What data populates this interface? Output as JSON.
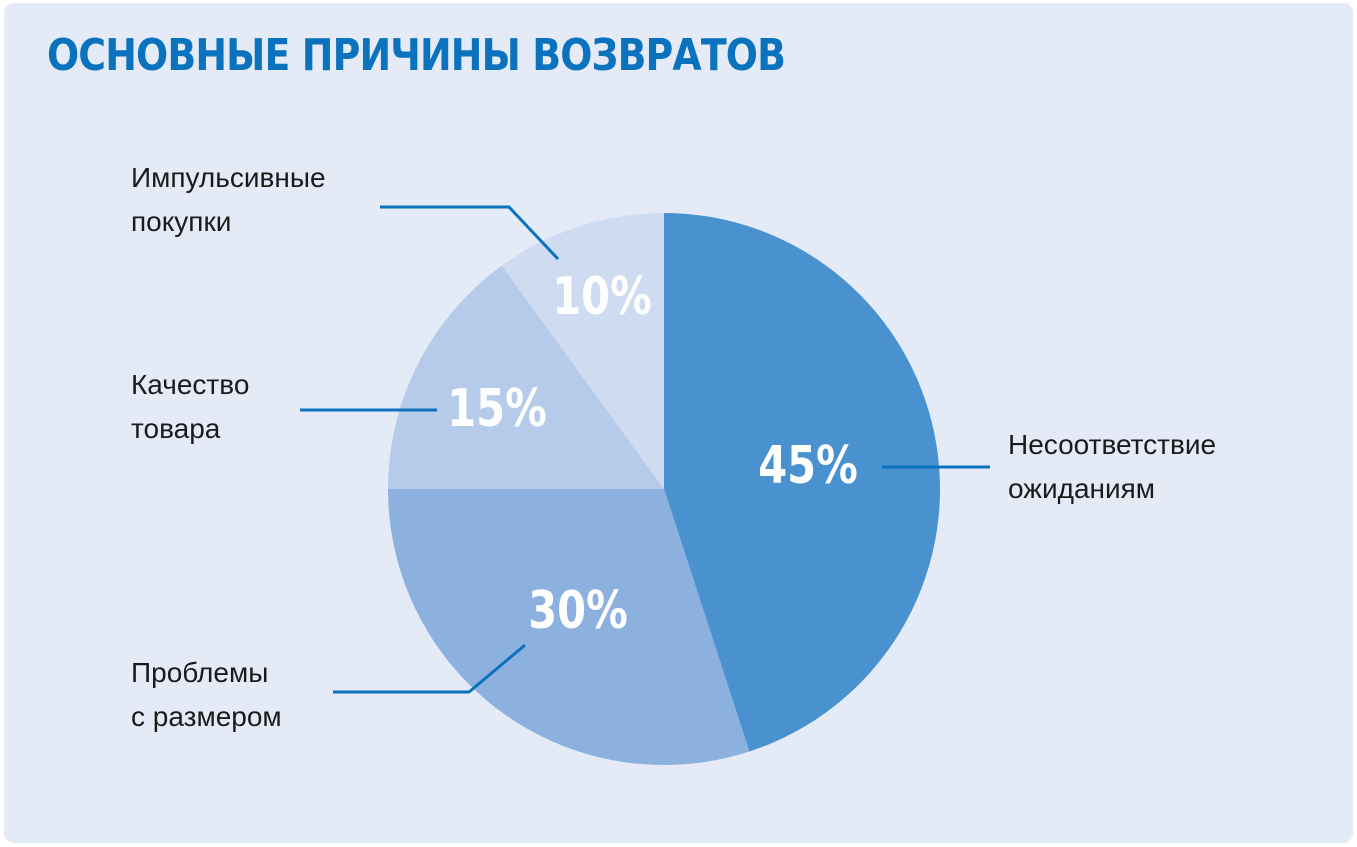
{
  "title": "ОСНОВНЫЕ ПРИЧИНЫ ВОЗВРАТОВ",
  "colors": {
    "background": "#e4ebf7",
    "title": "#0b72bd",
    "leader_line": "#0b72bd",
    "slice_labels": "#ffffff",
    "category_labels": "#1b1b1b"
  },
  "chart_data": {
    "type": "pie",
    "title": "ОСНОВНЫЕ ПРИЧИНЫ ВОЗВРАТОВ",
    "start": "12 o'clock",
    "direction": "clockwise",
    "slices": [
      {
        "value": 45,
        "value_label": "45%",
        "category": [
          "Несоответствие",
          "ожиданиям"
        ],
        "color": "#4a92cf"
      },
      {
        "value": 30,
        "value_label": "30%",
        "category": [
          "Проблемы",
          "с размером"
        ],
        "color": "#8db1df"
      },
      {
        "value": 15,
        "value_label": "15%",
        "category": [
          "Качество",
          "товара"
        ],
        "color": "#b6cbea"
      },
      {
        "value": 10,
        "value_label": "10%",
        "category": [
          "Импульсивные",
          "покупки"
        ],
        "color": "#cfdbf1"
      }
    ]
  }
}
